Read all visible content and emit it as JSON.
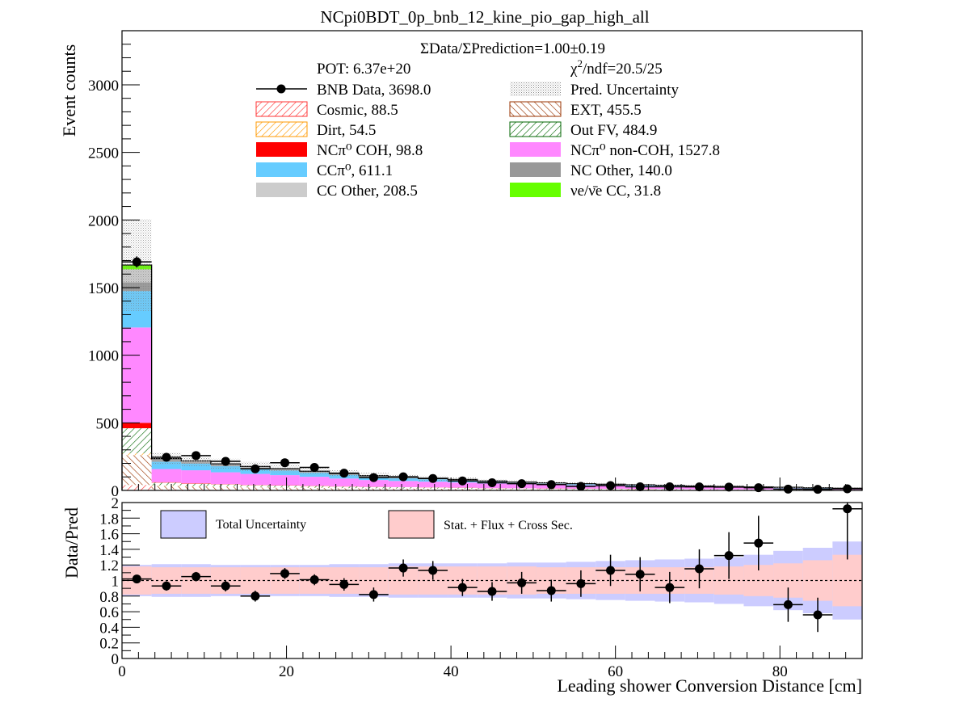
{
  "chart_data": [
    {
      "type": "bar",
      "stacked": true,
      "title": "NCpi0BDT_0p_bnb_12_kine_pio_gap_high_all",
      "xlabel": "Leading shower Conversion Distance [cm]",
      "ylabel": "Event counts",
      "xlim": [
        0,
        90
      ],
      "ylim": [
        0,
        3400
      ],
      "bin_width": 3.6,
      "x": [
        1.8,
        5.4,
        9.0,
        12.6,
        16.2,
        19.8,
        23.4,
        27.0,
        30.6,
        34.2,
        37.8,
        41.4,
        45.0,
        48.6,
        52.2,
        55.8,
        59.4,
        63.0,
        66.6,
        70.2,
        73.8,
        77.4,
        81.0,
        84.6,
        88.2
      ],
      "y_ticks": [
        "0",
        "500",
        "1000",
        "1500",
        "2000",
        "2500",
        "3000"
      ],
      "x_ticks": [
        "0",
        "20",
        "40",
        "60",
        "80"
      ],
      "annotations": {
        "ratio_text": "ΣData/ΣPrediction=1.00±0.19",
        "pot": "POT: 6.37e+20",
        "chi2_prefix": "χ",
        "chi2_sup": "2",
        "chi2_rest": "/ndf=20.5/25"
      },
      "legend": [
        {
          "name": "BNB Data, 3698.0",
          "style": "data",
          "color": "#000000"
        },
        {
          "name": "Pred. Uncertainty",
          "style": "dots",
          "color": "#999999"
        },
        {
          "name": "Cosmic, 88.5",
          "style": "hatch",
          "color": "#ff3333"
        },
        {
          "name": "EXT, 455.5",
          "style": "hatch",
          "color": "#993300"
        },
        {
          "name": "Dirt, 54.5",
          "style": "hatch",
          "color": "#ff9900"
        },
        {
          "name": "Out FV, 484.9",
          "style": "hatch",
          "color": "#006600"
        },
        {
          "name": "NCπ⁰ COH,  98.8",
          "style": "fill",
          "color": "#ff0000"
        },
        {
          "name": "NCπ⁰ non-COH,  1527.8",
          "style": "fill",
          "color": "#ff88ff"
        },
        {
          "name": "CCπ⁰, 611.1",
          "style": "fill",
          "color": "#66ccff"
        },
        {
          "name": "NC Other, 140.0",
          "style": "fill",
          "color": "#999999"
        },
        {
          "name": "CC Other, 208.5",
          "style": "fill",
          "color": "#cccccc"
        },
        {
          "name": "νe/ν̄e CC, 31.8",
          "style": "fill",
          "color": "#66ff00"
        }
      ],
      "series": [
        {
          "name": "Cosmic, 88.5",
          "color": "#ff3333",
          "values": [
            40,
            8,
            6,
            5,
            4,
            4,
            3,
            3,
            2,
            2,
            2,
            2,
            1,
            1,
            1,
            1,
            1,
            1,
            1,
            0,
            0,
            0,
            0,
            0,
            0
          ]
        },
        {
          "name": "EXT, 455.5",
          "color": "#993300",
          "values": [
            220,
            25,
            22,
            20,
            18,
            16,
            15,
            13,
            12,
            11,
            10,
            9,
            8,
            7,
            7,
            6,
            6,
            5,
            5,
            5,
            4,
            4,
            4,
            3,
            3
          ]
        },
        {
          "name": "Dirt, 54.5",
          "color": "#ff9900",
          "values": [
            15,
            5,
            4,
            4,
            3,
            3,
            3,
            2,
            2,
            2,
            2,
            2,
            1,
            1,
            1,
            1,
            1,
            1,
            1,
            1,
            1,
            0,
            0,
            0,
            0
          ]
        },
        {
          "name": "Out FV, 484.9",
          "color": "#006600",
          "values": [
            185,
            20,
            18,
            16,
            14,
            13,
            12,
            11,
            10,
            9,
            8,
            7,
            6,
            6,
            5,
            5,
            4,
            4,
            4,
            3,
            3,
            3,
            2,
            2,
            2
          ]
        },
        {
          "name": "NCπ⁰ COH,  98.8",
          "color": "#ff0000",
          "values": [
            40,
            3,
            3,
            2,
            2,
            2,
            2,
            2,
            1,
            1,
            1,
            1,
            1,
            1,
            1,
            1,
            1,
            1,
            0,
            0,
            0,
            0,
            0,
            0,
            0
          ]
        },
        {
          "name": "NCπ⁰ non-COH,  1527.8",
          "color": "#ff88ff",
          "values": [
            705,
            97,
            96,
            87,
            81,
            75,
            66,
            57,
            50,
            45,
            42,
            38,
            34,
            30,
            27,
            24,
            22,
            20,
            18,
            16,
            14,
            12,
            10,
            8,
            6
          ]
        },
        {
          "name": "CCπ⁰, 611.1",
          "color": "#66ccff",
          "values": [
            270,
            55,
            50,
            45,
            40,
            35,
            30,
            27,
            23,
            20,
            17,
            15,
            12,
            10,
            8,
            7,
            6,
            5,
            5,
            4,
            4,
            3,
            3,
            2,
            2
          ]
        },
        {
          "name": "NC Other, 140.0",
          "color": "#999999",
          "values": [
            65,
            12,
            9,
            8,
            7,
            6,
            5,
            4,
            4,
            3,
            3,
            2,
            2,
            2,
            2,
            1,
            1,
            1,
            1,
            1,
            1,
            1,
            1,
            1,
            1
          ]
        },
        {
          "name": "CC Other, 208.5",
          "color": "#cccccc",
          "values": [
            95,
            10,
            10,
            9,
            8,
            7,
            6,
            6,
            5,
            5,
            5,
            5,
            4,
            4,
            4,
            4,
            4,
            3,
            3,
            3,
            3,
            3,
            3,
            3,
            2
          ]
        },
        {
          "name": "νe/ν̄e CC, 31.8",
          "color": "#66ff00",
          "values": [
            32,
            0,
            0,
            0,
            0,
            0,
            0,
            0,
            0,
            0,
            0,
            0,
            0,
            0,
            0,
            0,
            0,
            0,
            0,
            0,
            0,
            0,
            0,
            0,
            0
          ]
        }
      ],
      "pred_uncertainty": [
        340,
        45,
        42,
        38,
        34,
        31,
        28,
        25,
        22,
        20,
        18,
        16,
        14,
        12,
        11,
        10,
        9,
        8,
        8,
        7,
        7,
        6,
        6,
        5,
        5
      ],
      "data": {
        "name": "BNB Data, 3698.0",
        "values": [
          1690,
          245,
          258,
          215,
          160,
          205,
          170,
          128,
          95,
          101,
          88,
          70,
          57,
          50,
          43,
          30,
          36,
          27,
          27,
          26,
          25,
          20,
          10,
          8,
          12
        ],
        "errors": [
          41,
          16,
          16,
          15,
          13,
          14,
          13,
          11,
          10,
          10,
          9,
          8,
          8,
          7,
          7,
          6,
          6,
          5,
          5,
          5,
          5,
          4,
          3,
          3,
          3
        ]
      }
    },
    {
      "type": "scatter",
      "ylabel": "Data/Pred",
      "xlabel": "Leading shower Conversion Distance [cm]",
      "xlim": [
        0,
        90
      ],
      "ylim": [
        0,
        2
      ],
      "y_ticks": [
        "0",
        "0.2",
        "0.4",
        "0.6",
        "0.8",
        "1",
        "1.2",
        "1.4",
        "1.6",
        "1.8",
        "2"
      ],
      "x_ticks": [
        "0",
        "20",
        "40",
        "60",
        "80"
      ],
      "legend": [
        {
          "name": "Total Uncertainty",
          "color": "#ccccff"
        },
        {
          "name": "Stat. + Flux + Cross Sec.",
          "color": "#ffcccc"
        }
      ],
      "total_uncertainty": [
        0.2,
        0.21,
        0.21,
        0.2,
        0.2,
        0.2,
        0.2,
        0.21,
        0.21,
        0.22,
        0.22,
        0.22,
        0.22,
        0.23,
        0.23,
        0.24,
        0.25,
        0.26,
        0.27,
        0.28,
        0.3,
        0.33,
        0.38,
        0.42,
        0.5
      ],
      "stat_flux_xs": [
        0.18,
        0.17,
        0.17,
        0.17,
        0.17,
        0.17,
        0.17,
        0.17,
        0.17,
        0.18,
        0.18,
        0.18,
        0.18,
        0.18,
        0.17,
        0.17,
        0.17,
        0.17,
        0.17,
        0.17,
        0.18,
        0.2,
        0.22,
        0.26,
        0.33
      ],
      "values": [
        1.02,
        0.93,
        1.05,
        0.93,
        0.8,
        1.09,
        1.01,
        0.95,
        0.82,
        1.16,
        1.13,
        0.91,
        0.86,
        0.97,
        0.87,
        0.96,
        1.13,
        1.08,
        0.91,
        1.15,
        1.32,
        1.48,
        0.69,
        0.56,
        1.92
      ],
      "errors": [
        0.03,
        0.06,
        0.06,
        0.07,
        0.07,
        0.07,
        0.07,
        0.08,
        0.09,
        0.11,
        0.12,
        0.11,
        0.12,
        0.14,
        0.14,
        0.17,
        0.2,
        0.22,
        0.2,
        0.25,
        0.3,
        0.35,
        0.22,
        0.22,
        0.65
      ]
    }
  ]
}
